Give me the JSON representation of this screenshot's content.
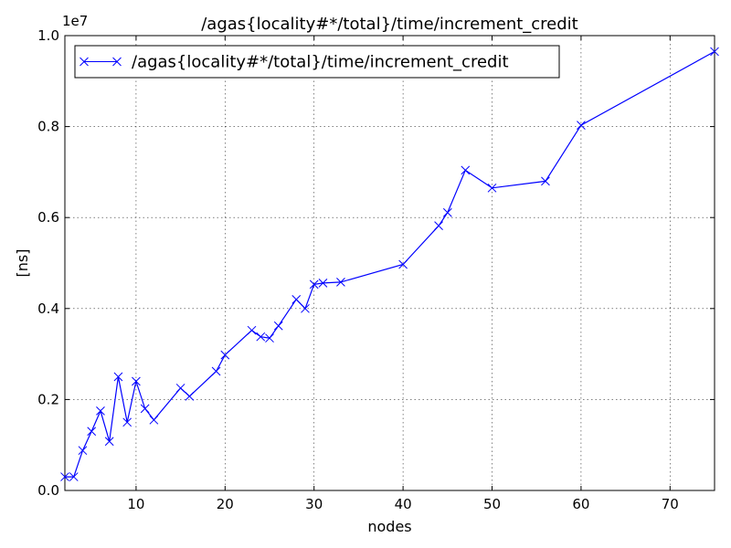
{
  "chart_data": {
    "type": "line",
    "title": "/agas{locality#*/total}/time/increment_credit",
    "xlabel": "nodes",
    "ylabel": "[ns]",
    "y_offset_label": "1e7",
    "xlim": [
      2,
      75
    ],
    "ylim": [
      0,
      10000000
    ],
    "x_ticks": [
      10,
      20,
      30,
      40,
      50,
      60,
      70
    ],
    "x_tick_labels": [
      "10",
      "20",
      "30",
      "40",
      "50",
      "60",
      "70"
    ],
    "y_ticks": [
      0,
      2000000,
      4000000,
      6000000,
      8000000,
      10000000
    ],
    "y_tick_labels": [
      "0.0",
      "0.2",
      "0.4",
      "0.6",
      "0.8",
      "1.0"
    ],
    "grid": true,
    "legend_position": "top-left",
    "color": "#0000ff",
    "marker": "x",
    "series": [
      {
        "name": "/agas{locality#*/total}/time/increment_credit",
        "x": [
          2,
          3,
          4,
          5,
          6,
          7,
          8,
          9,
          10,
          11,
          12,
          15,
          16,
          19,
          20,
          23,
          24,
          25,
          26,
          28,
          29,
          30,
          31,
          33,
          40,
          44,
          45,
          47,
          50,
          56,
          60,
          75
        ],
        "values": [
          300000,
          300000,
          880000,
          1300000,
          1750000,
          1080000,
          2500000,
          1500000,
          2400000,
          1800000,
          1550000,
          2250000,
          2070000,
          2620000,
          2980000,
          3520000,
          3380000,
          3350000,
          3620000,
          4200000,
          4000000,
          4530000,
          4560000,
          4580000,
          4970000,
          5820000,
          6110000,
          7040000,
          6650000,
          6800000,
          8030000,
          9650000
        ]
      }
    ]
  }
}
